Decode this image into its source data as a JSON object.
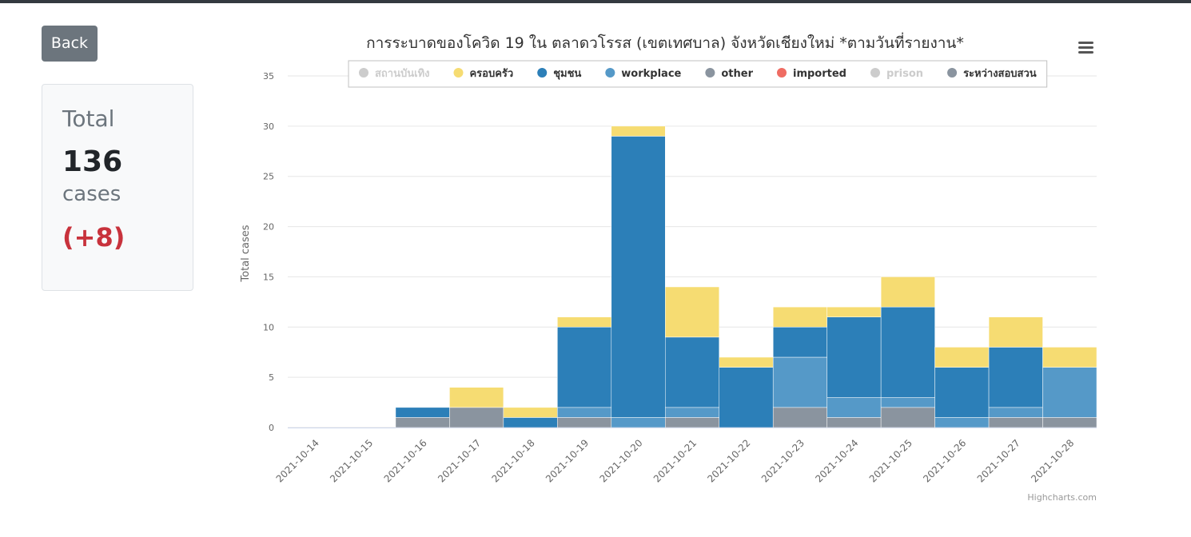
{
  "back_label": "Back",
  "summary": {
    "title": "Total",
    "value": "136",
    "unit": "cases",
    "delta": "(+8)"
  },
  "chart_data": {
    "type": "bar",
    "stacked": true,
    "title": "การระบาดของโควิด 19 ใน ตลาดวโรรส (เขตเทศบาล) จังหวัดเชียงใหม่ *ตามวันที่รายงาน*",
    "xlabel": "",
    "ylabel": "Total cases",
    "ylim": [
      0,
      35
    ],
    "yticks": [
      0,
      5,
      10,
      15,
      20,
      25,
      30,
      35
    ],
    "grid": true,
    "legend_position": "top",
    "credits": "Highcharts.com",
    "categories": [
      "2021-10-14",
      "2021-10-15",
      "2021-10-16",
      "2021-10-17",
      "2021-10-18",
      "2021-10-19",
      "2021-10-20",
      "2021-10-21",
      "2021-10-22",
      "2021-10-23",
      "2021-10-24",
      "2021-10-25",
      "2021-10-26",
      "2021-10-27",
      "2021-10-28"
    ],
    "series": [
      {
        "name": "ระหว่างสอบสวน",
        "color": "#8a949f",
        "visible": true,
        "values": [
          0,
          0,
          1,
          2,
          0,
          1,
          0,
          1,
          0,
          2,
          1,
          2,
          0,
          1,
          1
        ]
      },
      {
        "name": "prison",
        "color": "#cccccc",
        "visible": false,
        "values": [
          0,
          0,
          0,
          0,
          0,
          0,
          0,
          0,
          0,
          0,
          0,
          0,
          0,
          0,
          0
        ]
      },
      {
        "name": "imported",
        "color": "#ef6c63",
        "visible": true,
        "values": [
          0,
          0,
          0,
          0,
          0,
          0,
          0,
          0,
          0,
          0,
          0,
          0,
          0,
          0,
          0
        ]
      },
      {
        "name": "other",
        "color": "#8a949f",
        "visible": true,
        "values": [
          0,
          0,
          0,
          0,
          0,
          0,
          0,
          0,
          0,
          0,
          0,
          0,
          0,
          0,
          0
        ]
      },
      {
        "name": "workplace",
        "color": "#5599c8",
        "visible": true,
        "values": [
          0,
          0,
          0,
          0,
          0,
          1,
          1,
          1,
          0,
          5,
          2,
          1,
          1,
          1,
          5
        ]
      },
      {
        "name": "ชุมชน",
        "color": "#2c7fb8",
        "visible": true,
        "values": [
          0,
          0,
          1,
          0,
          1,
          8,
          28,
          7,
          6,
          3,
          8,
          9,
          5,
          6,
          0
        ]
      },
      {
        "name": "ครอบครัว",
        "color": "#f6dc72",
        "visible": true,
        "values": [
          0,
          0,
          0,
          2,
          1,
          1,
          1,
          5,
          1,
          2,
          1,
          3,
          2,
          3,
          2
        ]
      },
      {
        "name": "สถานบันเทิง",
        "color": "#cccccc",
        "visible": false,
        "values": [
          0,
          0,
          0,
          0,
          0,
          0,
          0,
          0,
          0,
          0,
          0,
          0,
          0,
          0,
          0
        ]
      }
    ],
    "legend_order": [
      "สถานบันเทิง",
      "ครอบครัว",
      "ชุมชน",
      "workplace",
      "other",
      "imported",
      "prison",
      "ระหว่างสอบสวน"
    ]
  }
}
